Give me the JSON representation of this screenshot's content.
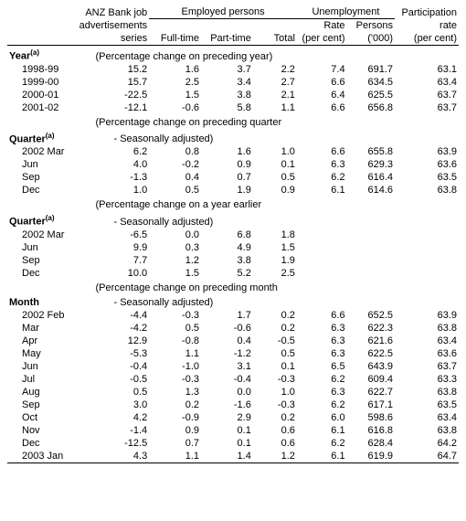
{
  "header": {
    "top": {
      "anz_l1": "ANZ Bank job",
      "anz_l2": "advertisements",
      "anz_l3": "series",
      "emp_group": "Employed persons",
      "emp_full": "Full-time",
      "emp_part": "Part-time",
      "emp_total": "Total",
      "unemp_group": "Unemployment",
      "unemp_rate_l1": "Rate",
      "unemp_rate_l2": "(per cent)",
      "unemp_pers_l1": "Persons",
      "unemp_pers_l2": "('000)",
      "part_l1": "Participation",
      "part_l2": "rate",
      "part_l3": "(per cent)"
    }
  },
  "sections": {
    "year": {
      "title": "Year",
      "sup": "(a)",
      "note": "(Percentage change on preceding year)",
      "rows": [
        {
          "label": "1998-99",
          "c": [
            "15.2",
            "1.6",
            "3.7",
            "2.2",
            "7.4",
            "691.7",
            "63.1"
          ]
        },
        {
          "label": "1999-00",
          "c": [
            "15.7",
            "2.5",
            "3.4",
            "2.7",
            "6.6",
            "634.5",
            "63.4"
          ]
        },
        {
          "label": "2000-01",
          "c": [
            "-22.5",
            "1.5",
            "3.8",
            "2.1",
            "6.4",
            "625.5",
            "63.7"
          ]
        },
        {
          "label": "2001-02",
          "c": [
            "-12.1",
            "-0.6",
            "5.8",
            "1.1",
            "6.6",
            "656.8",
            "63.7"
          ]
        }
      ]
    },
    "quarter_pq": {
      "title": "Quarter",
      "sup": "(a)",
      "note_l1": "(Percentage change on preceding quarter",
      "note_l2": "- Seasonally adjusted)",
      "rows": [
        {
          "label": "2002 Mar",
          "c": [
            "6.2",
            "0.8",
            "1.6",
            "1.0",
            "6.6",
            "655.8",
            "63.9"
          ]
        },
        {
          "label": "Jun",
          "c": [
            "4.0",
            "-0.2",
            "0.9",
            "0.1",
            "6.3",
            "629.3",
            "63.6"
          ]
        },
        {
          "label": "Sep",
          "c": [
            "-1.3",
            "0.4",
            "0.7",
            "0.5",
            "6.2",
            "616.4",
            "63.5"
          ]
        },
        {
          "label": "Dec",
          "c": [
            "1.0",
            "0.5",
            "1.9",
            "0.9",
            "6.1",
            "614.6",
            "63.8"
          ]
        }
      ]
    },
    "quarter_ye": {
      "title": "Quarter",
      "sup": "(a)",
      "note_l1": "(Percentage change on a year earlier",
      "note_l2": "- Seasonally adjusted)",
      "rows": [
        {
          "label": "2002 Mar",
          "c": [
            "-6.5",
            "0.0",
            "6.8",
            "1.8",
            "",
            "",
            ""
          ]
        },
        {
          "label": "Jun",
          "c": [
            "9.9",
            "0.3",
            "4.9",
            "1.5",
            "",
            "",
            ""
          ]
        },
        {
          "label": "Sep",
          "c": [
            "7.7",
            "1.2",
            "3.8",
            "1.9",
            "",
            "",
            ""
          ]
        },
        {
          "label": "Dec",
          "c": [
            "10.0",
            "1.5",
            "5.2",
            "2.5",
            "",
            "",
            ""
          ]
        }
      ]
    },
    "month": {
      "title": "Month",
      "note_l1": "(Percentage change on preceding month",
      "note_l2": "- Seasonally adjusted)",
      "rows": [
        {
          "label": "2002 Feb",
          "c": [
            "-4.4",
            "-0.3",
            "1.7",
            "0.2",
            "6.6",
            "652.5",
            "63.9"
          ]
        },
        {
          "label": "Mar",
          "c": [
            "-4.2",
            "0.5",
            "-0.6",
            "0.2",
            "6.3",
            "622.3",
            "63.8"
          ]
        },
        {
          "label": "Apr",
          "c": [
            "12.9",
            "-0.8",
            "0.4",
            "-0.5",
            "6.3",
            "621.6",
            "63.4"
          ]
        },
        {
          "label": "May",
          "c": [
            "-5.3",
            "1.1",
            "-1.2",
            "0.5",
            "6.3",
            "622.5",
            "63.6"
          ]
        },
        {
          "label": "Jun",
          "c": [
            "-0.4",
            "-1.0",
            "3.1",
            "0.1",
            "6.5",
            "643.9",
            "63.7"
          ]
        },
        {
          "label": "Jul",
          "c": [
            "-0.5",
            "-0.3",
            "-0.4",
            "-0.3",
            "6.2",
            "609.4",
            "63.3"
          ]
        },
        {
          "label": "Aug",
          "c": [
            "0.5",
            "1.3",
            "0.0",
            "1.0",
            "6.3",
            "622.7",
            "63.8"
          ]
        },
        {
          "label": "Sep",
          "c": [
            "3.0",
            "0.2",
            "-1.6",
            "-0.3",
            "6.2",
            "617.1",
            "63.5"
          ]
        },
        {
          "label": "Oct",
          "c": [
            "4.2",
            "-0.9",
            "2.9",
            "0.2",
            "6.0",
            "598.6",
            "63.4"
          ]
        },
        {
          "label": "Nov",
          "c": [
            "-1.4",
            "0.9",
            "0.1",
            "0.6",
            "6.1",
            "616.8",
            "63.8"
          ]
        },
        {
          "label": "Dec",
          "c": [
            "-12.5",
            "0.7",
            "0.1",
            "0.6",
            "6.2",
            "628.4",
            "64.2"
          ]
        },
        {
          "label": "2003 Jan",
          "c": [
            "4.3",
            "1.1",
            "1.4",
            "1.2",
            "6.1",
            "619.9",
            "64.7"
          ]
        }
      ]
    }
  }
}
